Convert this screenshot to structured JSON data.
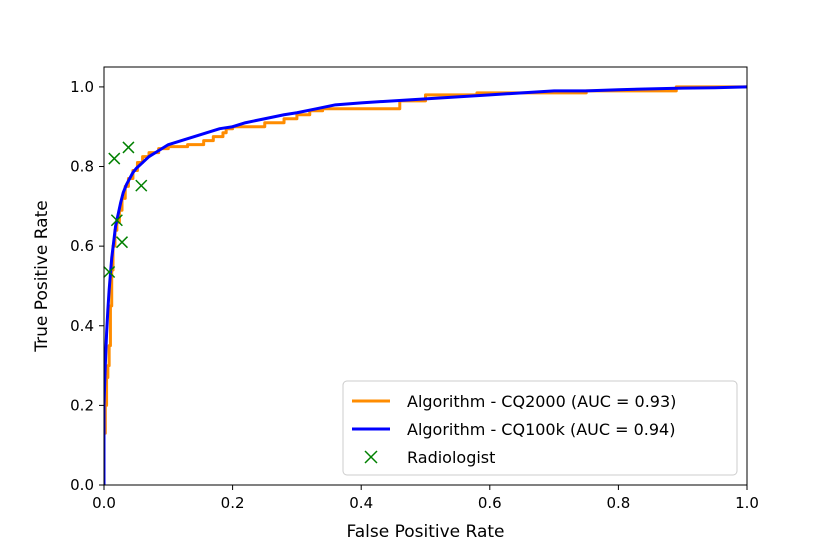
{
  "chart_data": {
    "type": "line",
    "title": "",
    "xlabel": "False Positive Rate",
    "ylabel": "True Positive Rate",
    "xlim": [
      0.0,
      1.0
    ],
    "ylim": [
      0.0,
      1.05
    ],
    "xticks": [
      0.0,
      0.2,
      0.4,
      0.6,
      0.8,
      1.0
    ],
    "xtick_labels": [
      "0.0",
      "0.2",
      "0.4",
      "0.6",
      "0.8",
      "1.0"
    ],
    "yticks": [
      0.0,
      0.2,
      0.4,
      0.6,
      0.8,
      1.0
    ],
    "ytick_labels": [
      "0.0",
      "0.2",
      "0.4",
      "0.6",
      "0.8",
      "1.0"
    ],
    "grid": false,
    "legend_position": "lower-right",
    "series": [
      {
        "name": "Algorithm - CQ2000 (AUC = 0.93)",
        "kind": "line",
        "color": "#ff8c00",
        "x": [
          0.0,
          0.0,
          0.002,
          0.002,
          0.004,
          0.004,
          0.006,
          0.006,
          0.008,
          0.008,
          0.01,
          0.01,
          0.012,
          0.012,
          0.014,
          0.014,
          0.017,
          0.017,
          0.02,
          0.02,
          0.024,
          0.024,
          0.028,
          0.028,
          0.033,
          0.033,
          0.038,
          0.038,
          0.045,
          0.045,
          0.052,
          0.052,
          0.06,
          0.06,
          0.07,
          0.07,
          0.085,
          0.085,
          0.1,
          0.1,
          0.13,
          0.13,
          0.155,
          0.155,
          0.17,
          0.17,
          0.185,
          0.185,
          0.19,
          0.19,
          0.2,
          0.2,
          0.25,
          0.25,
          0.28,
          0.28,
          0.3,
          0.3,
          0.32,
          0.32,
          0.34,
          0.34,
          0.46,
          0.46,
          0.5,
          0.5,
          0.58,
          0.58,
          0.75,
          0.75,
          0.89,
          0.89,
          1.0
        ],
        "y": [
          0.0,
          0.13,
          0.13,
          0.2,
          0.2,
          0.27,
          0.27,
          0.3,
          0.3,
          0.35,
          0.35,
          0.45,
          0.45,
          0.54,
          0.54,
          0.6,
          0.6,
          0.64,
          0.64,
          0.66,
          0.66,
          0.69,
          0.69,
          0.72,
          0.72,
          0.75,
          0.75,
          0.77,
          0.77,
          0.79,
          0.79,
          0.81,
          0.81,
          0.825,
          0.825,
          0.835,
          0.835,
          0.845,
          0.845,
          0.85,
          0.85,
          0.855,
          0.855,
          0.865,
          0.865,
          0.875,
          0.875,
          0.885,
          0.885,
          0.895,
          0.895,
          0.9,
          0.9,
          0.91,
          0.91,
          0.92,
          0.92,
          0.93,
          0.93,
          0.94,
          0.94,
          0.945,
          0.945,
          0.965,
          0.965,
          0.98,
          0.98,
          0.985,
          0.985,
          0.99,
          0.99,
          1.0,
          1.0
        ]
      },
      {
        "name": "Algorithm - CQ100k (AUC = 0.94)",
        "kind": "line",
        "color": "#0000ff",
        "x": [
          0.0,
          0.0,
          0.002,
          0.004,
          0.006,
          0.008,
          0.01,
          0.012,
          0.015,
          0.018,
          0.022,
          0.026,
          0.03,
          0.035,
          0.04,
          0.045,
          0.05,
          0.06,
          0.07,
          0.08,
          0.09,
          0.1,
          0.12,
          0.14,
          0.16,
          0.18,
          0.2,
          0.22,
          0.25,
          0.28,
          0.3,
          0.33,
          0.36,
          0.4,
          0.45,
          0.5,
          0.55,
          0.6,
          0.65,
          0.7,
          0.75,
          0.8,
          0.85,
          0.9,
          0.95,
          1.0
        ],
        "y": [
          0.0,
          0.2,
          0.3,
          0.38,
          0.44,
          0.49,
          0.53,
          0.57,
          0.61,
          0.65,
          0.68,
          0.71,
          0.735,
          0.755,
          0.77,
          0.785,
          0.795,
          0.81,
          0.825,
          0.835,
          0.845,
          0.855,
          0.865,
          0.875,
          0.885,
          0.895,
          0.9,
          0.91,
          0.92,
          0.93,
          0.935,
          0.945,
          0.955,
          0.96,
          0.965,
          0.97,
          0.975,
          0.98,
          0.985,
          0.99,
          0.99,
          0.993,
          0.995,
          0.997,
          0.998,
          1.0
        ]
      },
      {
        "name": "Radiologist",
        "kind": "scatter",
        "marker": "x",
        "color": "#008000",
        "x": [
          0.008,
          0.016,
          0.02,
          0.028,
          0.038,
          0.058
        ],
        "y": [
          0.535,
          0.82,
          0.665,
          0.61,
          0.848,
          0.752
        ]
      }
    ]
  }
}
